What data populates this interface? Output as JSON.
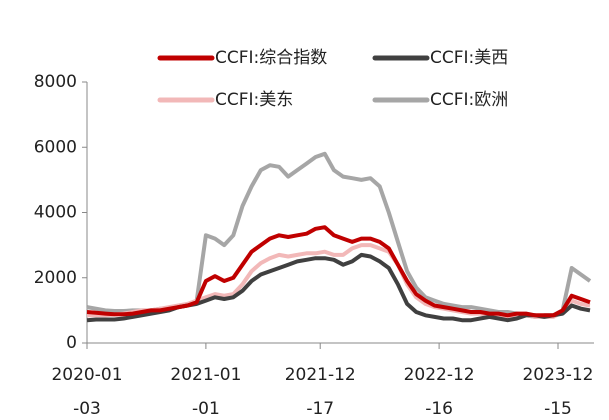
{
  "chart_data": {
    "type": "line",
    "x": [
      "2020-01-03",
      "2020-01-31",
      "2020-02-28",
      "2020-03-27",
      "2020-04-24",
      "2020-05-22",
      "2020-06-19",
      "2020-07-17",
      "2020-08-14",
      "2020-09-11",
      "2020-10-09",
      "2020-11-06",
      "2020-12-04",
      "2021-01-01",
      "2021-01-29",
      "2021-02-26",
      "2021-03-26",
      "2021-04-23",
      "2021-05-21",
      "2021-06-18",
      "2021-07-16",
      "2021-08-13",
      "2021-09-10",
      "2021-10-08",
      "2021-11-05",
      "2021-12-03",
      "2021-12-31",
      "2022-01-28",
      "2022-02-25",
      "2022-03-25",
      "2022-04-22",
      "2022-05-20",
      "2022-06-17",
      "2022-07-15",
      "2022-08-12",
      "2022-09-09",
      "2022-10-07",
      "2022-11-04",
      "2022-12-02",
      "2022-12-30",
      "2023-01-27",
      "2023-02-24",
      "2023-03-24",
      "2023-04-21",
      "2023-05-19",
      "2023-06-16",
      "2023-07-14",
      "2023-08-11",
      "2023-09-08",
      "2023-10-06",
      "2023-11-03",
      "2023-12-01",
      "2023-12-29",
      "2024-01-26",
      "2024-02-23",
      "2024-03-22"
    ],
    "series": [
      {
        "name": "CCFI:综合指数",
        "color": "#c00000",
        "values": [
          950,
          930,
          900,
          880,
          880,
          900,
          950,
          1000,
          1000,
          1050,
          1100,
          1150,
          1250,
          1900,
          2050,
          1900,
          2000,
          2400,
          2800,
          3000,
          3200,
          3300,
          3250,
          3300,
          3350,
          3500,
          3550,
          3300,
          3200,
          3100,
          3200,
          3200,
          3100,
          2900,
          2400,
          1900,
          1500,
          1300,
          1150,
          1100,
          1050,
          1000,
          950,
          950,
          900,
          900,
          850,
          900,
          900,
          850,
          850,
          850,
          1000,
          1450,
          1350,
          1250
        ]
      },
      {
        "name": "CCFI:美西",
        "color": "#404040",
        "values": [
          700,
          720,
          720,
          720,
          750,
          800,
          850,
          900,
          950,
          1000,
          1100,
          1150,
          1200,
          1300,
          1400,
          1350,
          1400,
          1600,
          1900,
          2100,
          2200,
          2300,
          2400,
          2500,
          2550,
          2600,
          2600,
          2550,
          2400,
          2500,
          2700,
          2650,
          2500,
          2300,
          1800,
          1200,
          950,
          850,
          800,
          750,
          750,
          700,
          700,
          750,
          800,
          750,
          700,
          750,
          850,
          850,
          800,
          850,
          900,
          1150,
          1050,
          1000
        ]
      },
      {
        "name": "CCFI:美东",
        "color": "#f2b8b8",
        "values": [
          850,
          850,
          850,
          870,
          900,
          950,
          1000,
          1000,
          1050,
          1100,
          1150,
          1200,
          1300,
          1400,
          1500,
          1450,
          1500,
          1800,
          2200,
          2450,
          2600,
          2700,
          2650,
          2700,
          2750,
          2750,
          2800,
          2700,
          2700,
          2900,
          3000,
          3000,
          2900,
          2800,
          2400,
          1800,
          1400,
          1200,
          1100,
          1050,
          1000,
          950,
          900,
          900,
          850,
          850,
          800,
          850,
          850,
          800,
          800,
          800,
          950,
          1300,
          1200,
          1150
        ]
      },
      {
        "name": "CCFI:欧洲",
        "color": "#a6a6a6",
        "values": [
          1100,
          1050,
          1000,
          980,
          980,
          1000,
          1000,
          1000,
          1050,
          1050,
          1100,
          1150,
          1300,
          3300,
          3200,
          3000,
          3300,
          4200,
          4800,
          5300,
          5450,
          5400,
          5100,
          5300,
          5500,
          5700,
          5800,
          5300,
          5100,
          5050,
          5000,
          5050,
          4800,
          4000,
          3100,
          2200,
          1700,
          1400,
          1300,
          1200,
          1150,
          1100,
          1100,
          1050,
          1000,
          950,
          950,
          900,
          850,
          800,
          850,
          850,
          1000,
          2300,
          2100,
          1900
        ]
      }
    ],
    "xlim": [
      "2020-01-03",
      "2024-03-22"
    ],
    "xticks": [
      "2020-01-03",
      "2021-01-01",
      "2021-12-17",
      "2022-12-16",
      "2023-12-15"
    ],
    "ylim": [
      0,
      8000
    ],
    "yticks": [
      0,
      2000,
      4000,
      6000,
      8000
    ]
  }
}
